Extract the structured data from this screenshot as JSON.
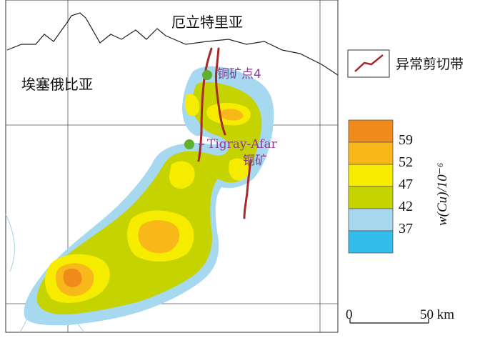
{
  "map": {
    "country_labels": {
      "eritrea": "厄立特里亚",
      "ethiopia": "埃塞俄比亚"
    },
    "site_labels": {
      "copper_point_4": "铜矿点4",
      "tigray_afar": "Tigray-Afar",
      "tigray_afar_suffix": "铜矿"
    },
    "shear_zone_legend": "异常剪切带",
    "colorbar": {
      "title": "w(Cu)/10⁻⁶",
      "ticks": [
        "59",
        "52",
        "47",
        "42",
        "37"
      ],
      "colors": [
        "#F08A1A",
        "#F9B81A",
        "#F6EC00",
        "#C5D300",
        "#A6D8F0",
        "#33BDEB"
      ]
    },
    "scale_bar": {
      "zero": "0",
      "distance": "50 km"
    },
    "colors": {
      "shear_zone": "#A62A2A",
      "site_marker": "#5DB12E",
      "site_label": "#8A3C96"
    }
  }
}
